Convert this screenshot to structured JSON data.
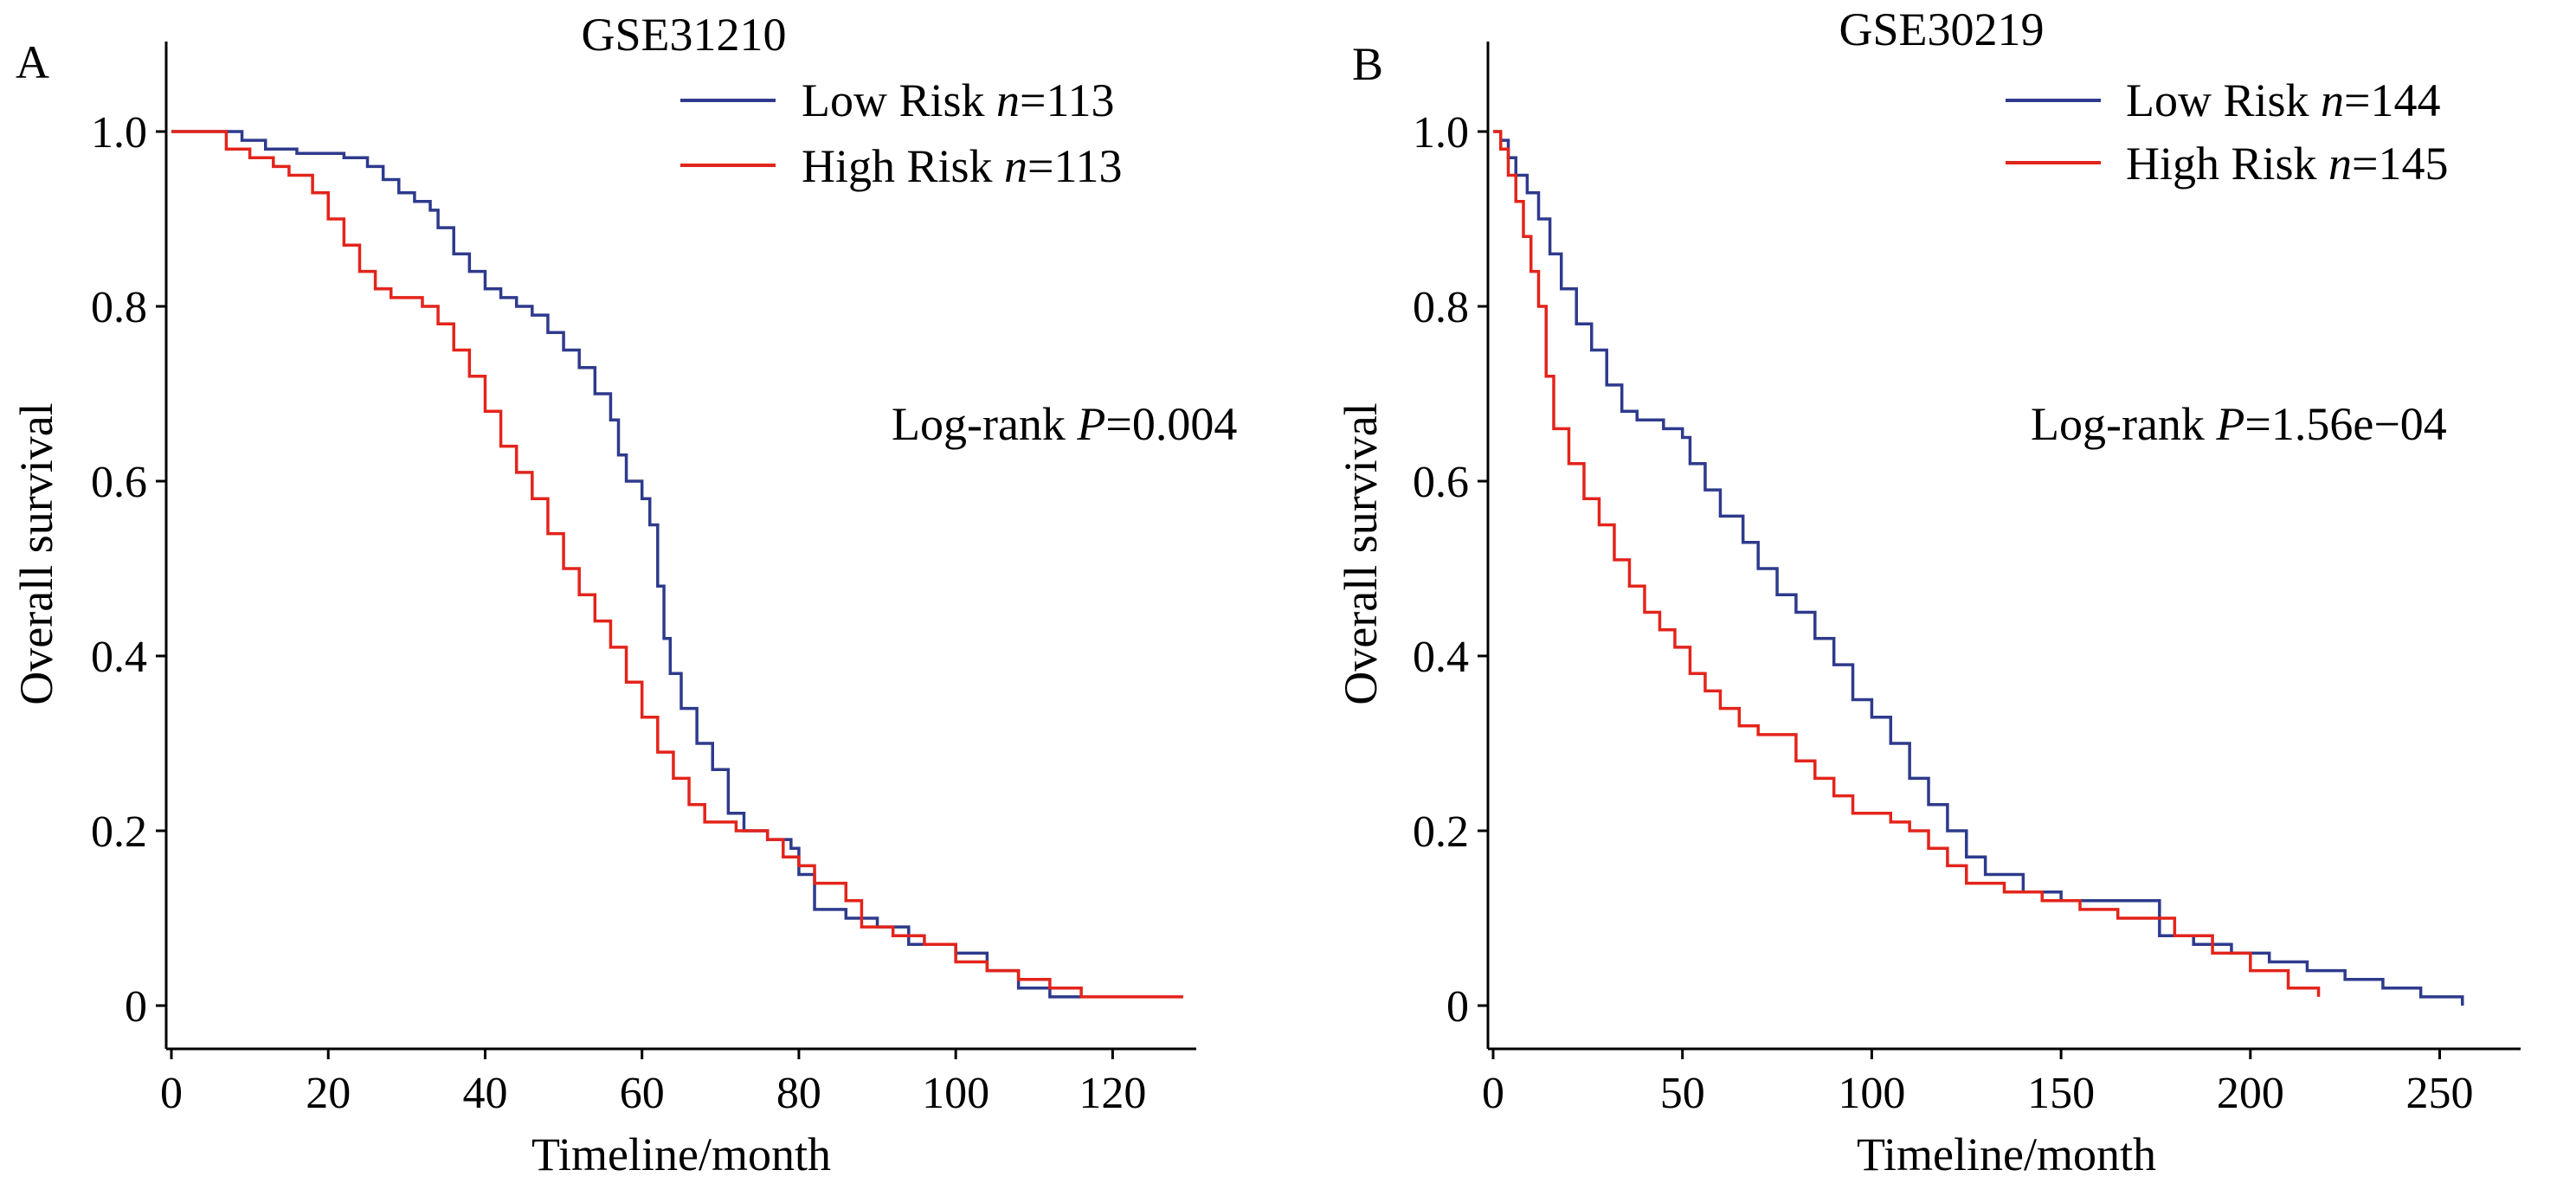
{
  "chart_data": [
    {
      "panel_label": "A",
      "type": "line",
      "step": true,
      "title": "GSE31210",
      "xlabel": "Timeline/month",
      "ylabel": "Overall survival",
      "xlim": [
        0,
        130
      ],
      "ylim": [
        0,
        1.1
      ],
      "xticks": [
        0,
        20,
        40,
        60,
        80,
        100,
        120
      ],
      "xtick_labels": [
        "0",
        "20",
        "40",
        "60",
        "80",
        "100",
        "120"
      ],
      "yticks": [
        0,
        0.2,
        0.4,
        0.6,
        0.8,
        1.0
      ],
      "ytick_labels": [
        "0",
        "0.2",
        "0.4",
        "0.6",
        "0.8",
        "1.0"
      ],
      "grid": false,
      "legend_position": "top-right",
      "annotation": {
        "prefix": "Log-rank ",
        "italic": "P",
        "suffix": "=0.004"
      },
      "series": [
        {
          "name": "Low Risk n=113",
          "legend": {
            "label": "Low Risk ",
            "italic": "n",
            "suffix": "=113"
          },
          "color": "#2e3a8c",
          "points": [
            [
              0,
              1.0
            ],
            [
              7,
              1.0
            ],
            [
              9,
              0.99
            ],
            [
              12,
              0.98
            ],
            [
              16,
              0.975
            ],
            [
              22,
              0.97
            ],
            [
              25,
              0.96
            ],
            [
              27,
              0.945
            ],
            [
              29,
              0.93
            ],
            [
              31,
              0.92
            ],
            [
              33,
              0.91
            ],
            [
              34,
              0.89
            ],
            [
              36,
              0.86
            ],
            [
              38,
              0.84
            ],
            [
              40,
              0.82
            ],
            [
              42,
              0.81
            ],
            [
              44,
              0.8
            ],
            [
              46,
              0.79
            ],
            [
              48,
              0.77
            ],
            [
              50,
              0.75
            ],
            [
              52,
              0.73
            ],
            [
              54,
              0.7
            ],
            [
              56,
              0.67
            ],
            [
              57,
              0.63
            ],
            [
              58,
              0.6
            ],
            [
              60,
              0.58
            ],
            [
              61,
              0.55
            ],
            [
              62,
              0.48
            ],
            [
              62.8,
              0.42
            ],
            [
              63.6,
              0.38
            ],
            [
              65,
              0.34
            ],
            [
              67,
              0.3
            ],
            [
              69,
              0.27
            ],
            [
              71,
              0.22
            ],
            [
              73,
              0.2
            ],
            [
              76,
              0.19
            ],
            [
              79,
              0.18
            ],
            [
              80,
              0.15
            ],
            [
              82,
              0.11
            ],
            [
              86,
              0.1
            ],
            [
              90,
              0.09
            ],
            [
              94,
              0.07
            ],
            [
              100,
              0.06
            ],
            [
              104,
              0.04
            ],
            [
              108,
              0.02
            ],
            [
              112,
              0.01
            ],
            [
              116,
              0.01
            ]
          ]
        },
        {
          "name": "High Risk n=113",
          "legend": {
            "label": "High Risk ",
            "italic": "n",
            "suffix": "=113"
          },
          "color": "#e3241b",
          "points": [
            [
              0,
              1.0
            ],
            [
              5,
              1.0
            ],
            [
              7,
              0.98
            ],
            [
              10,
              0.97
            ],
            [
              13,
              0.96
            ],
            [
              15,
              0.95
            ],
            [
              18,
              0.93
            ],
            [
              20,
              0.9
            ],
            [
              22,
              0.87
            ],
            [
              24,
              0.84
            ],
            [
              26,
              0.82
            ],
            [
              28,
              0.81
            ],
            [
              32,
              0.8
            ],
            [
              34,
              0.78
            ],
            [
              36,
              0.75
            ],
            [
              38,
              0.72
            ],
            [
              40,
              0.68
            ],
            [
              42,
              0.64
            ],
            [
              44,
              0.61
            ],
            [
              46,
              0.58
            ],
            [
              48,
              0.54
            ],
            [
              50,
              0.5
            ],
            [
              52,
              0.47
            ],
            [
              54,
              0.44
            ],
            [
              56,
              0.41
            ],
            [
              58,
              0.37
            ],
            [
              60,
              0.33
            ],
            [
              62,
              0.29
            ],
            [
              64,
              0.26
            ],
            [
              66,
              0.23
            ],
            [
              68,
              0.21
            ],
            [
              72,
              0.2
            ],
            [
              76,
              0.19
            ],
            [
              78,
              0.17
            ],
            [
              80,
              0.16
            ],
            [
              82,
              0.14
            ],
            [
              86,
              0.12
            ],
            [
              88,
              0.09
            ],
            [
              92,
              0.08
            ],
            [
              96,
              0.07
            ],
            [
              100,
              0.05
            ],
            [
              104,
              0.04
            ],
            [
              108,
              0.03
            ],
            [
              112,
              0.02
            ],
            [
              116,
              0.01
            ],
            [
              129,
              0.01
            ]
          ]
        }
      ]
    },
    {
      "panel_label": "B",
      "type": "line",
      "step": true,
      "title": "GSE30219",
      "xlabel": "Timeline/month",
      "ylabel": "Overall survival",
      "xlim": [
        0,
        270
      ],
      "ylim": [
        0,
        1.1
      ],
      "xticks": [
        0,
        50,
        100,
        150,
        200,
        250
      ],
      "xtick_labels": [
        "0",
        "50",
        "100",
        "150",
        "200",
        "250"
      ],
      "yticks": [
        0,
        0.2,
        0.4,
        0.6,
        0.8,
        1.0
      ],
      "ytick_labels": [
        "0",
        "0.2",
        "0.4",
        "0.6",
        "0.8",
        "1.0"
      ],
      "grid": false,
      "legend_position": "top-right",
      "annotation": {
        "prefix": "Log-rank ",
        "italic": "P",
        "suffix": "=1.56e−04"
      },
      "series": [
        {
          "name": "Low Risk n=144",
          "legend": {
            "label": "Low Risk ",
            "italic": "n",
            "suffix": "=144"
          },
          "color": "#2e3a8c",
          "points": [
            [
              0,
              1.0
            ],
            [
              2,
              0.99
            ],
            [
              4,
              0.97
            ],
            [
              6,
              0.95
            ],
            [
              9,
              0.93
            ],
            [
              12,
              0.9
            ],
            [
              15,
              0.86
            ],
            [
              18,
              0.82
            ],
            [
              22,
              0.78
            ],
            [
              26,
              0.75
            ],
            [
              30,
              0.71
            ],
            [
              34,
              0.68
            ],
            [
              38,
              0.67
            ],
            [
              45,
              0.66
            ],
            [
              50,
              0.65
            ],
            [
              52,
              0.62
            ],
            [
              56,
              0.59
            ],
            [
              60,
              0.56
            ],
            [
              66,
              0.53
            ],
            [
              70,
              0.5
            ],
            [
              75,
              0.47
            ],
            [
              80,
              0.45
            ],
            [
              85,
              0.42
            ],
            [
              90,
              0.39
            ],
            [
              95,
              0.35
            ],
            [
              100,
              0.33
            ],
            [
              105,
              0.3
            ],
            [
              110,
              0.26
            ],
            [
              115,
              0.23
            ],
            [
              120,
              0.2
            ],
            [
              125,
              0.17
            ],
            [
              130,
              0.15
            ],
            [
              140,
              0.13
            ],
            [
              150,
              0.12
            ],
            [
              175,
              0.12
            ],
            [
              176,
              0.08
            ],
            [
              185,
              0.07
            ],
            [
              195,
              0.06
            ],
            [
              205,
              0.05
            ],
            [
              215,
              0.04
            ],
            [
              225,
              0.03
            ],
            [
              235,
              0.02
            ],
            [
              245,
              0.01
            ],
            [
              256,
              0.0
            ]
          ]
        },
        {
          "name": "High Risk n=145",
          "legend": {
            "label": "High Risk ",
            "italic": "n",
            "suffix": "=145"
          },
          "color": "#e3241b",
          "points": [
            [
              0,
              1.0
            ],
            [
              2,
              0.98
            ],
            [
              4,
              0.95
            ],
            [
              6,
              0.92
            ],
            [
              8,
              0.88
            ],
            [
              10,
              0.84
            ],
            [
              12,
              0.8
            ],
            [
              14,
              0.72
            ],
            [
              16,
              0.66
            ],
            [
              20,
              0.62
            ],
            [
              24,
              0.58
            ],
            [
              28,
              0.55
            ],
            [
              32,
              0.51
            ],
            [
              36,
              0.48
            ],
            [
              40,
              0.45
            ],
            [
              44,
              0.43
            ],
            [
              48,
              0.41
            ],
            [
              52,
              0.38
            ],
            [
              56,
              0.36
            ],
            [
              60,
              0.34
            ],
            [
              65,
              0.32
            ],
            [
              70,
              0.31
            ],
            [
              80,
              0.28
            ],
            [
              85,
              0.26
            ],
            [
              90,
              0.24
            ],
            [
              95,
              0.22
            ],
            [
              105,
              0.21
            ],
            [
              110,
              0.2
            ],
            [
              115,
              0.18
            ],
            [
              120,
              0.16
            ],
            [
              125,
              0.14
            ],
            [
              135,
              0.13
            ],
            [
              145,
              0.12
            ],
            [
              155,
              0.11
            ],
            [
              165,
              0.1
            ],
            [
              180,
              0.08
            ],
            [
              190,
              0.06
            ],
            [
              200,
              0.04
            ],
            [
              210,
              0.02
            ],
            [
              218,
              0.01
            ]
          ]
        }
      ]
    }
  ]
}
